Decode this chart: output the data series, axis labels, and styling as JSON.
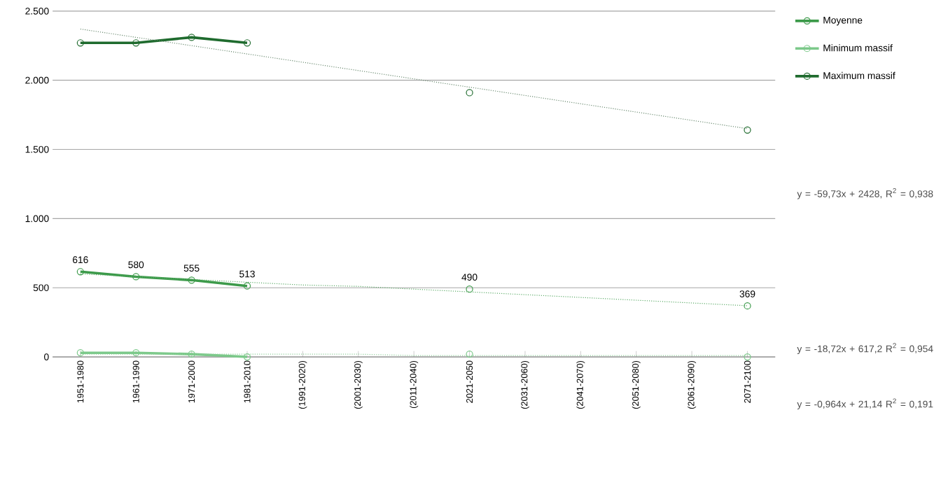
{
  "chart_data": {
    "type": "line",
    "categories": [
      "1951-1980",
      "1961-1990",
      "1971-2000",
      "1981-2010",
      "(1991-2020)",
      "(2001-2030)",
      "(2011-2040)",
      "2021-2050",
      "(2031-2060)",
      "(2041-2070)",
      "(2051-2080)",
      "(2061-2090)",
      "2071-2100"
    ],
    "series": [
      {
        "name": "Moyenne",
        "color": "#3c9a4a",
        "values": [
          616,
          580,
          555,
          513,
          null,
          null,
          null,
          490,
          null,
          null,
          null,
          null,
          369
        ],
        "value_labels": [
          "616",
          "580",
          "555",
          "513",
          null,
          null,
          null,
          "490",
          null,
          null,
          null,
          null,
          "369"
        ]
      },
      {
        "name": "Minimum massif",
        "color": "#7cc98a",
        "values": [
          30,
          30,
          20,
          0,
          null,
          null,
          null,
          20,
          null,
          null,
          null,
          null,
          0
        ]
      },
      {
        "name": "Maximum massif",
        "color": "#1f6b2e",
        "values": [
          2270,
          2270,
          2310,
          2270,
          null,
          null,
          null,
          1910,
          null,
          null,
          null,
          null,
          1640
        ]
      },
      {
        "color": "#6a8a70",
        "line_style": "dotted",
        "marker": "none",
        "values": [
          2370,
          2310,
          2250,
          2190,
          2130,
          2070,
          2010,
          1950,
          1890,
          1830,
          1770,
          1710,
          1650
        ]
      },
      {
        "color": "#5aaa66",
        "line_style": "dotted",
        "marker": "none",
        "values": [
          600,
          580,
          560,
          540,
          520,
          510,
          490,
          470,
          450,
          430,
          410,
          390,
          370
        ]
      },
      {
        "color": "#8fd09a",
        "line_style": "dotted",
        "marker": "none",
        "values": [
          20,
          20,
          20,
          20,
          20,
          20,
          10,
          10,
          10,
          10,
          10,
          10,
          10
        ]
      }
    ],
    "ylim": [
      0,
      2500
    ],
    "yticks": [
      0,
      500,
      {
        "value": 1000,
        "label": "1.000"
      },
      {
        "value": 1500,
        "label": "1.500"
      },
      {
        "value": 2000,
        "label": "2.000"
      },
      {
        "value": 2500,
        "label": "2.500"
      }
    ],
    "grid": "y",
    "legend": "right",
    "marker": "circle",
    "line_style": "solid",
    "annotations": [
      "y = -59,73x + 2428, R$^{2}$ = 0,938",
      "y = -18,72x + 617,2 R$^{2}$ = 0,954",
      "y = -0,964x + 21,14 R$^{2}$ = 0,191"
    ]
  }
}
